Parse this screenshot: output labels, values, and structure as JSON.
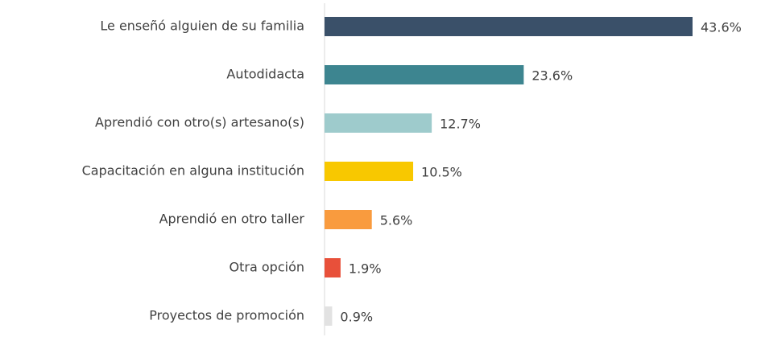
{
  "chart_data": {
    "type": "hbar",
    "categories": [
      "Le enseñó alguien de su familia",
      "Autodidacta",
      "Aprendió con otro(s) artesano(s)",
      "Capacitación en alguna institución",
      "Aprendió en otro taller",
      "Otra opción",
      "Proyectos de promoción"
    ],
    "values": [
      43.6,
      23.6,
      12.7,
      10.5,
      5.6,
      1.9,
      0.9
    ],
    "value_labels": [
      "43.6%",
      "23.6%",
      "12.7%",
      "10.5%",
      "5.6%",
      "1.9%",
      "0.9%"
    ],
    "colors": [
      "#3a5069",
      "#3d8590",
      "#9ecbcc",
      "#f8c800",
      "#f99b3e",
      "#e8503a",
      "#e2e2e2"
    ]
  }
}
